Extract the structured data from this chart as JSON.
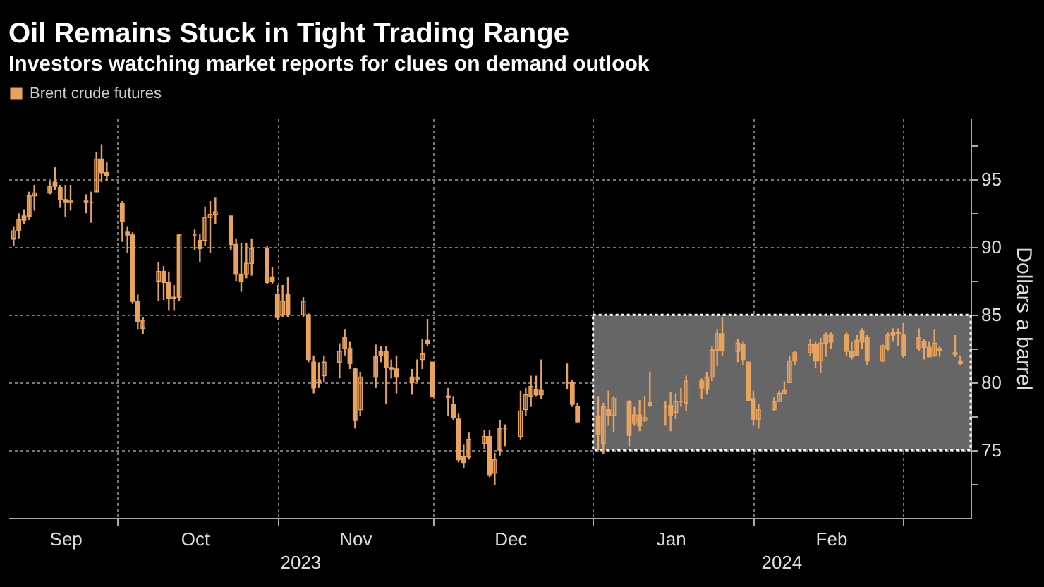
{
  "chart_data": {
    "type": "candlestick",
    "title": "Oil Remains Stuck in Tight Trading Range",
    "subtitle": "Investors watching market reports for clues on demand outlook",
    "ylabel": "Dollars a barrel",
    "annotations": [
      "2023",
      "2024"
    ],
    "x": [
      "2023-09-11",
      "2023-09-12",
      "2023-09-13",
      "2023-09-14",
      "2023-09-15",
      "2023-09-18",
      "2023-09-19",
      "2023-09-20",
      "2023-09-21",
      "2023-09-22",
      "2023-09-25",
      "2023-09-26",
      "2023-09-27",
      "2023-09-28",
      "2023-09-29",
      "2023-10-02",
      "2023-10-03",
      "2023-10-04",
      "2023-10-05",
      "2023-10-06",
      "2023-10-09",
      "2023-10-10",
      "2023-10-11",
      "2023-10-12",
      "2023-10-13",
      "2023-10-16",
      "2023-10-17",
      "2023-10-18",
      "2023-10-19",
      "2023-10-20",
      "2023-10-23",
      "2023-10-24",
      "2023-10-25",
      "2023-10-26",
      "2023-10-27",
      "2023-10-30",
      "2023-10-31",
      "2023-11-01",
      "2023-11-02",
      "2023-11-03",
      "2023-11-06",
      "2023-11-07",
      "2023-11-08",
      "2023-11-09",
      "2023-11-10",
      "2023-11-13",
      "2023-11-14",
      "2023-11-15",
      "2023-11-16",
      "2023-11-17",
      "2023-11-20",
      "2023-11-21",
      "2023-11-22",
      "2023-11-23",
      "2023-11-24",
      "2023-11-27",
      "2023-11-28",
      "2023-11-29",
      "2023-11-30",
      "2023-12-01",
      "2023-12-04",
      "2023-12-05",
      "2023-12-06",
      "2023-12-07",
      "2023-12-08",
      "2023-12-11",
      "2023-12-12",
      "2023-12-13",
      "2023-12-14",
      "2023-12-15",
      "2023-12-18",
      "2023-12-19",
      "2023-12-20",
      "2023-12-21",
      "2023-12-22",
      "2023-12-27",
      "2023-12-28",
      "2023-12-29",
      "2024-01-02",
      "2024-01-03",
      "2024-01-04",
      "2024-01-05",
      "2024-01-08",
      "2024-01-09",
      "2024-01-10",
      "2024-01-11",
      "2024-01-12",
      "2024-01-15",
      "2024-01-16",
      "2024-01-17",
      "2024-01-18",
      "2024-01-19",
      "2024-01-22",
      "2024-01-23",
      "2024-01-24",
      "2024-01-25",
      "2024-01-26",
      "2024-01-29",
      "2024-01-30",
      "2024-01-31",
      "2024-02-01",
      "2024-02-02",
      "2024-02-05",
      "2024-02-06",
      "2024-02-07",
      "2024-02-08",
      "2024-02-09",
      "2024-02-12",
      "2024-02-13",
      "2024-02-14",
      "2024-02-15",
      "2024-02-16",
      "2024-02-19",
      "2024-02-20",
      "2024-02-21",
      "2024-02-22",
      "2024-02-23",
      "2024-02-26",
      "2024-02-27",
      "2024-02-28",
      "2024-02-29",
      "2024-03-01",
      "2024-03-04",
      "2024-03-05",
      "2024-03-06",
      "2024-03-07",
      "2024-03-08",
      "2024-03-11",
      "2024-03-12"
    ],
    "series": [
      {
        "name": "Brent crude futures",
        "color": "#e8a35f",
        "ohlc": [
          [
            90.6,
            91.5,
            90.1,
            91.2
          ],
          [
            91.2,
            92.5,
            90.6,
            92.0
          ],
          [
            92.0,
            92.8,
            91.7,
            92.3
          ],
          [
            92.3,
            94.1,
            92.0,
            93.8
          ],
          [
            93.8,
            94.6,
            92.7,
            94.0
          ],
          [
            94.0,
            94.9,
            93.9,
            94.5
          ],
          [
            94.5,
            95.9,
            94.2,
            94.8
          ],
          [
            94.4,
            94.6,
            92.9,
            93.5
          ],
          [
            93.5,
            94.6,
            92.2,
            93.3
          ],
          [
            93.3,
            94.6,
            92.7,
            93.4
          ],
          [
            93.4,
            93.9,
            92.5,
            93.3
          ],
          [
            93.3,
            94.1,
            91.8,
            93.3
          ],
          [
            94.1,
            97.0,
            94.1,
            96.5
          ],
          [
            96.5,
            97.6,
            94.8,
            95.5
          ],
          [
            95.5,
            96.3,
            94.9,
            95.3
          ],
          [
            93.2,
            93.4,
            90.4,
            91.9
          ],
          [
            91.1,
            91.5,
            89.6,
            90.9
          ],
          [
            90.9,
            91.1,
            85.8,
            86.0
          ],
          [
            86.0,
            86.5,
            83.9,
            84.5
          ],
          [
            84.0,
            84.8,
            83.6,
            84.6
          ],
          [
            87.5,
            88.9,
            86.0,
            88.2
          ],
          [
            88.2,
            88.6,
            86.1,
            87.4
          ],
          [
            87.4,
            88.2,
            85.3,
            86.2
          ],
          [
            86.2,
            87.2,
            85.3,
            86.3
          ],
          [
            86.3,
            91.0,
            86.0,
            90.9
          ],
          [
            90.9,
            91.3,
            89.8,
            90.9
          ],
          [
            90.5,
            91.0,
            88.9,
            89.9
          ],
          [
            90.5,
            93.0,
            90.1,
            92.2
          ],
          [
            92.2,
            93.4,
            89.6,
            92.4
          ],
          [
            92.4,
            93.7,
            91.7,
            92.6
          ],
          [
            92.3,
            92.3,
            89.8,
            90.2
          ],
          [
            90.2,
            90.6,
            87.5,
            88.0
          ],
          [
            88.0,
            90.3,
            86.7,
            87.5
          ],
          [
            88.0,
            90.3,
            87.7,
            88.8
          ],
          [
            88.8,
            90.6,
            87.9,
            89.9
          ],
          [
            89.9,
            90.1,
            87.3,
            87.4
          ],
          [
            87.8,
            88.5,
            87.3,
            87.5
          ],
          [
            86.5,
            87.2,
            84.6,
            84.8
          ],
          [
            85.0,
            87.2,
            84.8,
            86.0
          ],
          [
            86.5,
            87.8,
            84.8,
            85.0
          ],
          [
            85.0,
            86.3,
            84.8,
            86.0
          ],
          [
            85.0,
            85.1,
            81.5,
            81.7
          ],
          [
            81.5,
            82.0,
            79.2,
            79.6
          ],
          [
            80.0,
            81.5,
            79.6,
            80.2
          ],
          [
            80.5,
            82.0,
            80.0,
            81.5
          ],
          [
            81.5,
            82.9,
            80.3,
            82.3
          ],
          [
            82.5,
            83.9,
            82.0,
            83.3
          ],
          [
            82.5,
            83.0,
            81.0,
            81.4
          ],
          [
            81.0,
            81.1,
            76.6,
            77.2
          ],
          [
            78.0,
            80.8,
            77.5,
            80.4
          ],
          [
            80.4,
            82.8,
            79.6,
            81.9
          ],
          [
            82.0,
            82.7,
            81.5,
            82.3
          ],
          [
            82.3,
            82.7,
            78.4,
            81.1
          ],
          [
            81.1,
            81.7,
            80.3,
            81.0
          ],
          [
            81.0,
            82.0,
            79.2,
            80.4
          ],
          [
            80.4,
            81.0,
            79.1,
            80.0
          ],
          [
            80.2,
            81.7,
            80.0,
            80.4
          ],
          [
            81.7,
            83.2,
            81.0,
            82.1
          ],
          [
            83.1,
            84.7,
            82.7,
            82.9
          ],
          [
            81.5,
            81.5,
            78.9,
            79.0
          ],
          [
            79.0,
            79.6,
            77.5,
            78.9
          ],
          [
            78.4,
            79.0,
            77.2,
            77.4
          ],
          [
            77.3,
            77.7,
            74.1,
            74.3
          ],
          [
            74.5,
            75.4,
            73.7,
            74.1
          ],
          [
            74.5,
            76.3,
            74.3,
            75.8
          ],
          [
            75.5,
            76.5,
            75.1,
            76.0
          ],
          [
            76.0,
            76.5,
            73.0,
            73.2
          ],
          [
            73.3,
            74.8,
            72.4,
            74.3
          ],
          [
            75.0,
            77.2,
            74.6,
            76.6
          ],
          [
            76.6,
            76.9,
            75.3,
            76.6
          ],
          [
            76.0,
            79.4,
            75.8,
            77.9
          ],
          [
            78.0,
            79.6,
            77.5,
            79.1
          ],
          [
            79.0,
            80.5,
            78.2,
            79.7
          ],
          [
            79.5,
            80.5,
            79.0,
            79.1
          ],
          [
            79.1,
            81.7,
            78.8,
            79.4
          ],
          [
            80.0,
            81.4,
            79.5,
            80.0
          ],
          [
            80.0,
            80.2,
            78.2,
            78.4
          ],
          [
            78.2,
            78.5,
            77.0,
            77.1
          ],
          [
            77.5,
            79.0,
            75.0,
            76.2
          ],
          [
            75.5,
            78.5,
            74.7,
            78.2
          ],
          [
            78.0,
            79.4,
            76.8,
            77.6
          ],
          [
            77.6,
            79.0,
            76.3,
            78.8
          ],
          [
            78.6,
            78.7,
            75.3,
            76.1
          ],
          [
            77.0,
            78.2,
            76.8,
            77.6
          ],
          [
            77.6,
            78.7,
            76.4,
            76.8
          ],
          [
            77.2,
            79.0,
            77.1,
            77.4
          ],
          [
            78.5,
            80.8,
            78.2,
            78.3
          ],
          [
            78.2,
            78.6,
            76.8,
            78.2
          ],
          [
            78.3,
            79.3,
            76.4,
            77.6
          ],
          [
            77.8,
            79.2,
            77.3,
            78.6
          ],
          [
            78.6,
            79.6,
            78.2,
            78.6
          ],
          [
            78.5,
            80.5,
            77.9,
            80.1
          ],
          [
            80.1,
            80.3,
            78.8,
            79.6
          ],
          [
            79.5,
            80.8,
            79.1,
            80.4
          ],
          [
            80.4,
            82.7,
            80.1,
            82.4
          ],
          [
            82.4,
            83.9,
            81.2,
            83.6
          ],
          [
            83.6,
            84.8,
            82.0,
            82.4
          ],
          [
            82.3,
            83.2,
            81.5,
            82.9
          ],
          [
            82.8,
            83.0,
            81.3,
            81.7
          ],
          [
            81.5,
            81.5,
            78.6,
            78.7
          ],
          [
            78.8,
            79.4,
            76.8,
            77.3
          ],
          [
            77.3,
            78.4,
            76.6,
            78.0
          ],
          [
            78.0,
            78.9,
            77.9,
            78.6
          ],
          [
            78.6,
            79.4,
            78.6,
            79.2
          ],
          [
            79.2,
            80.1,
            79.1,
            79.4
          ],
          [
            80.0,
            82.0,
            80.0,
            81.6
          ],
          [
            81.6,
            82.3,
            81.3,
            82.2
          ],
          [
            82.2,
            83.2,
            82.0,
            82.8
          ],
          [
            82.8,
            83.0,
            81.1,
            81.6
          ],
          [
            81.6,
            83.3,
            80.7,
            82.9
          ],
          [
            82.9,
            83.7,
            81.9,
            83.5
          ],
          [
            83.0,
            83.7,
            82.5,
            83.5
          ],
          [
            83.5,
            83.7,
            82.0,
            82.3
          ],
          [
            82.3,
            83.0,
            81.7,
            81.9
          ],
          [
            82.0,
            83.5,
            82.0,
            83.1
          ],
          [
            83.0,
            84.0,
            82.5,
            83.8
          ],
          [
            83.3,
            83.5,
            81.3,
            81.6
          ],
          [
            81.6,
            82.8,
            81.5,
            82.7
          ],
          [
            82.5,
            83.7,
            82.3,
            83.5
          ],
          [
            83.5,
            84.0,
            83.0,
            83.7
          ],
          [
            83.7,
            84.0,
            82.7,
            83.6
          ],
          [
            83.5,
            84.4,
            81.8,
            82.0
          ],
          [
            82.5,
            84.0,
            82.3,
            83.3
          ],
          [
            83.0,
            83.2,
            81.7,
            82.6
          ],
          [
            82.6,
            83.0,
            81.9,
            81.9
          ],
          [
            82.0,
            83.9,
            81.9,
            82.9
          ],
          [
            82.5,
            82.7,
            81.9,
            82.4
          ],
          [
            82.2,
            83.5,
            81.9,
            82.1
          ],
          [
            81.6,
            82.0,
            81.3,
            81.4
          ]
        ]
      }
    ],
    "xlim": [
      "2023-09-10",
      "2024-03-14"
    ],
    "xticks": [
      {
        "value": "2023-09-21",
        "label": "Sep"
      },
      {
        "value": "2023-10-01",
        "label": null
      },
      {
        "value": "2023-10-16",
        "label": "Oct"
      },
      {
        "value": "2023-11-01",
        "label": null
      },
      {
        "value": "2023-11-16",
        "label": "Nov"
      },
      {
        "value": "2023-12-01",
        "label": null
      },
      {
        "value": "2023-12-16",
        "label": "Dec"
      },
      {
        "value": "2024-01-01",
        "label": null
      },
      {
        "value": "2024-01-16",
        "label": "Jan"
      },
      {
        "value": "2024-02-01",
        "label": null
      },
      {
        "value": "2024-02-16",
        "label": "Feb"
      },
      {
        "value": "2024-03-01",
        "label": null
      }
    ],
    "ylim": [
      70,
      99.5
    ],
    "yticks": [
      {
        "value": 72.5,
        "label": null
      },
      75,
      {
        "value": 77.5,
        "label": null
      },
      80,
      {
        "value": 82.5,
        "label": null
      },
      85,
      {
        "value": 87.5,
        "label": null
      },
      90,
      {
        "value": 92.5,
        "label": null
      },
      95,
      {
        "value": 97.5,
        "label": null
      }
    ],
    "bands": [
      {
        "axis": "y",
        "from": 75,
        "to": 85,
        "color": "#666666"
      }
    ],
    "grid": true,
    "legend": "top left"
  }
}
